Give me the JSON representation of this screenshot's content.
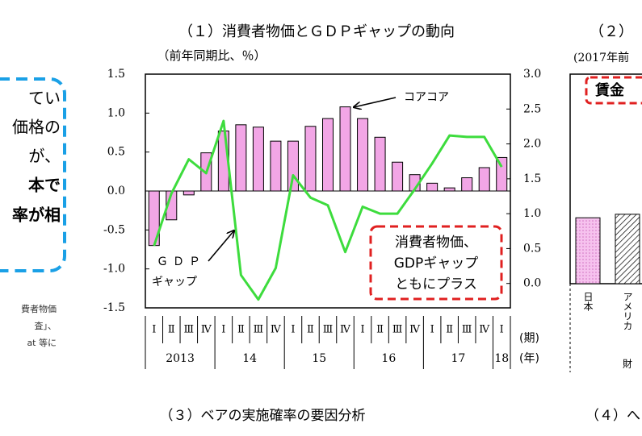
{
  "chart_data": [
    {
      "type": "combo",
      "title": "（１）消費者物価とＧＤＰギャップの動向",
      "subtitle": "（前年同期比、％）",
      "categories": [
        "Ⅰ",
        "Ⅱ",
        "Ⅲ",
        "Ⅳ",
        "Ⅰ",
        "Ⅱ",
        "Ⅲ",
        "Ⅳ",
        "Ⅰ",
        "Ⅱ",
        "Ⅲ",
        "Ⅳ",
        "Ⅰ",
        "Ⅱ",
        "Ⅲ",
        "Ⅳ",
        "Ⅰ",
        "Ⅱ",
        "Ⅲ",
        "Ⅳ",
        "Ⅰ"
      ],
      "year_labels": [
        "2013",
        "14",
        "15",
        "16",
        "17",
        "18"
      ],
      "x_label_quarter": "(期)",
      "x_label_year": "(年)",
      "series": [
        {
          "type": "bar",
          "color": "#f2a6e6",
          "values": [
            -0.7,
            -0.37,
            -0.05,
            0.49,
            0.77,
            0.85,
            0.82,
            0.64,
            0.64,
            0.83,
            0.93,
            1.08,
            0.93,
            0.69,
            0.37,
            0.21,
            0.1,
            0.04,
            0.17,
            0.3,
            0.43
          ]
        },
        {
          "type": "line",
          "axis": "y2",
          "color": "#3ddc3d",
          "values": [
            0.54,
            1.29,
            1.78,
            1.58,
            2.33,
            0.12,
            -0.23,
            0.22,
            1.55,
            1.23,
            1.12,
            0.45,
            1.1,
            1.0,
            1.0,
            1.35,
            1.72,
            2.12,
            2.1,
            2.1,
            1.67
          ]
        }
      ],
      "ylim": [
        -1.5,
        1.5
      ],
      "yticks": [
        1.5,
        {
          "value": 1,
          "label": "1.0"
        },
        0.5,
        {
          "value": 0,
          "label": "0.0"
        },
        -0.5,
        {
          "value": -1,
          "label": "-1.0"
        },
        -1.5
      ],
      "y2lim": [
        -0.35,
        3.0
      ],
      "y2ticks": [
        {
          "value": 3,
          "label": "3.0"
        },
        2.5,
        {
          "value": 2,
          "label": "2.0"
        },
        1.5,
        {
          "value": 1,
          "label": "1.0"
        },
        0.5,
        {
          "value": 0,
          "label": "0.0"
        }
      ],
      "annotations": {
        "core": "コアコア",
        "gdp_line1": "ＧＤＰ",
        "gdp_line2": "ギャップ",
        "box": [
          "消費者物価、",
          "GDPギャップ",
          "ともにプラス"
        ]
      }
    },
    {
      "type": "bar",
      "title": "（２）",
      "subtitle": "(2017年前",
      "box_label": "賃金",
      "categories": [
        "日本",
        "アメリカ"
      ],
      "values": [
        0.94,
        0.99
      ],
      "group_label": "財"
    }
  ],
  "left_box": {
    "lines": [
      "てい",
      "価格の",
      "が、"
    ],
    "bold_lines": [
      "本で",
      "率が相"
    ]
  },
  "notes": [
    "費者物価",
    "査」、",
    "at 等に"
  ],
  "panel3_title": "（３）ベアの実施確率の要因分析",
  "panel4_title": "（４）へ"
}
